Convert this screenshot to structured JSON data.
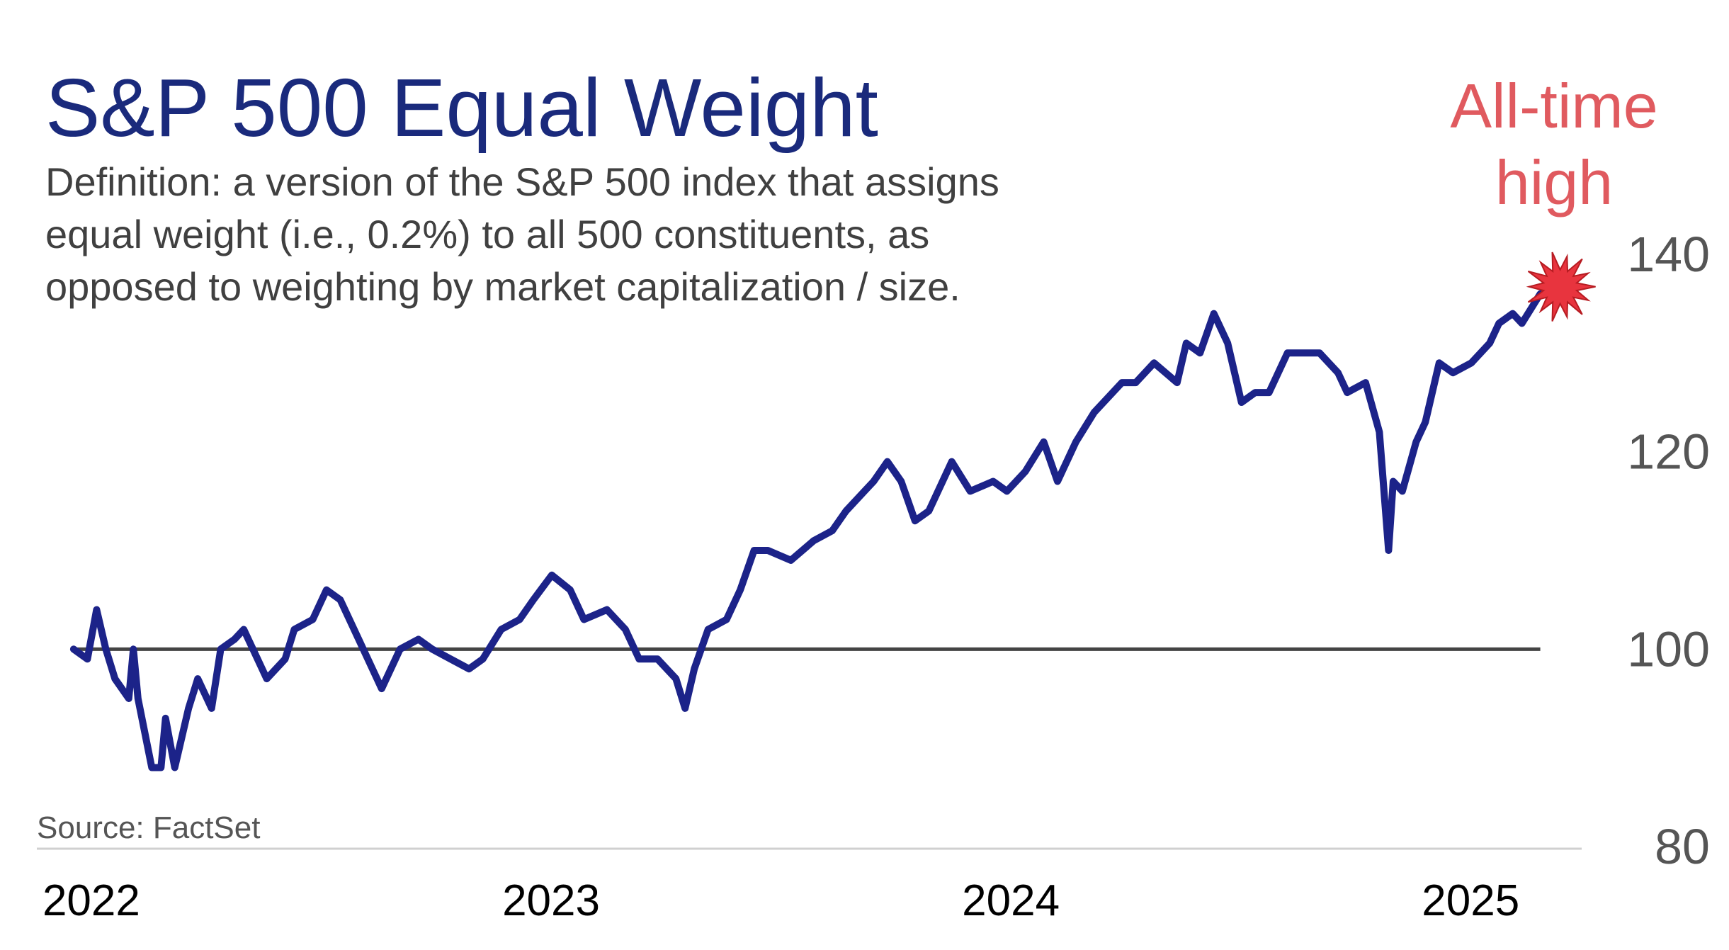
{
  "chart_data": {
    "type": "line",
    "title": "S&P 500 Equal Weight",
    "subtitle": [
      "Definition: a version of the S&P 500 index that assigns",
      "equal weight (i.e., 0.2%) to all 500 constituents, as",
      "opposed to weighting by market capitalization / size."
    ],
    "annotation": [
      "All-time",
      "high"
    ],
    "source": "Source: FactSet",
    "x": [
      2022.0,
      2022.03,
      2022.05,
      2022.07,
      2022.09,
      2022.12,
      2022.13,
      2022.14,
      2022.17,
      2022.19,
      2022.2,
      2022.22,
      2022.25,
      2022.27,
      2022.3,
      2022.32,
      2022.35,
      2022.37,
      2022.4,
      2022.42,
      2022.46,
      2022.48,
      2022.52,
      2022.55,
      2022.58,
      2022.61,
      2022.65,
      2022.67,
      2022.71,
      2022.75,
      2022.78,
      2022.82,
      2022.86,
      2022.89,
      2022.93,
      2022.97,
      2023.0,
      2023.04,
      2023.08,
      2023.11,
      2023.16,
      2023.2,
      2023.23,
      2023.27,
      2023.31,
      2023.33,
      2023.35,
      2023.38,
      2023.42,
      2023.45,
      2023.48,
      2023.51,
      2023.56,
      2023.61,
      2023.65,
      2023.68,
      2023.72,
      2023.74,
      2023.77,
      2023.8,
      2023.83,
      2023.86,
      2023.91,
      2023.95,
      2024.0,
      2024.03,
      2024.07,
      2024.11,
      2024.14,
      2024.18,
      2024.22,
      2024.24,
      2024.28,
      2024.31,
      2024.35,
      2024.4,
      2024.42,
      2024.45,
      2024.48,
      2024.51,
      2024.54,
      2024.57,
      2024.6,
      2024.64,
      2024.68,
      2024.71,
      2024.75,
      2024.77,
      2024.81,
      2024.84,
      2024.86,
      2024.87,
      2024.89,
      2024.92,
      2024.94,
      2024.97,
      2025.0,
      2025.04,
      2025.08,
      2025.1,
      2025.13,
      2025.15,
      2025.19
    ],
    "series": [
      {
        "name": "S&P 500 Equal Weight",
        "color": "#1c2389",
        "values": [
          100,
          99,
          104,
          100,
          97,
          95,
          100,
          95,
          88,
          88,
          93,
          88,
          94,
          97,
          94,
          100,
          101,
          102,
          99,
          97,
          99,
          102,
          103,
          106,
          105,
          102,
          98,
          96,
          100,
          101,
          100,
          99,
          98,
          99,
          102,
          103,
          105,
          107.5,
          106,
          103,
          104,
          102,
          99,
          99,
          97,
          94,
          98,
          102,
          103,
          106,
          110,
          110,
          109,
          111,
          112,
          114,
          116,
          117,
          119,
          117,
          113,
          114,
          119,
          116,
          117,
          116,
          118,
          121,
          117,
          121,
          124,
          125,
          127,
          127,
          129,
          127,
          131,
          130,
          134,
          131,
          125,
          126,
          126,
          130,
          130,
          130,
          128,
          126,
          127,
          122,
          110,
          117,
          116,
          121,
          123,
          129,
          128,
          129,
          131,
          133,
          134,
          133,
          136
        ]
      }
    ],
    "reference_line": 100,
    "xlim": [
      2021.92,
      2025.28
    ],
    "xticks": [
      2022,
      2023,
      2024,
      2025
    ],
    "ylim": [
      80,
      140
    ],
    "yticks": [
      80,
      100,
      120,
      140
    ]
  }
}
